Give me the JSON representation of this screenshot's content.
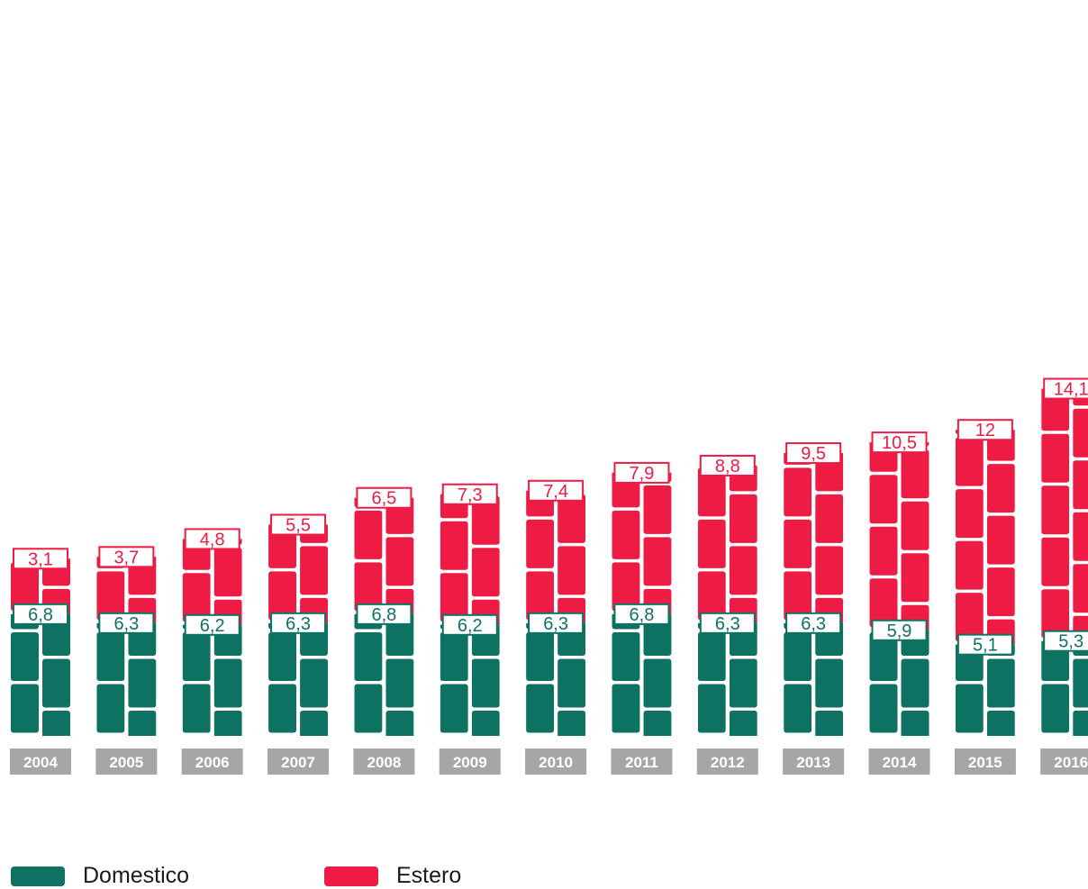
{
  "chart_data": {
    "type": "bar",
    "stacked": true,
    "categories": [
      "2004",
      "2005",
      "2006",
      "2007",
      "2008",
      "2009",
      "2010",
      "2011",
      "2012",
      "2013",
      "2014",
      "2015",
      "2016"
    ],
    "series": [
      {
        "name": "Domestico",
        "color": "#0e7263",
        "values": [
          6.8,
          6.3,
          6.2,
          6.3,
          6.8,
          6.2,
          6.3,
          6.8,
          6.3,
          6.3,
          5.9,
          5.1,
          5.3
        ]
      },
      {
        "name": "Estero",
        "color": "#ee1c45",
        "values": [
          3.1,
          3.7,
          4.8,
          5.5,
          6.5,
          7.3,
          7.4,
          7.9,
          8.8,
          9.5,
          10.5,
          12,
          14.1
        ]
      }
    ],
    "data_labels": {
      "Domestico": [
        "6,8",
        "6,3",
        "6,2",
        "6,3",
        "6,8",
        "6,2",
        "6,3",
        "6,8",
        "6,3",
        "6,3",
        "5,9",
        "5,1",
        "5,3"
      ],
      "Estero": [
        "3,1",
        "3,7",
        "4,8",
        "5,5",
        "6,5",
        "7,3",
        "7,4",
        "7,9",
        "8,8",
        "9,5",
        "10,5",
        "12",
        "14,1"
      ]
    },
    "title": "",
    "xlabel": "",
    "ylabel": "",
    "grid": false,
    "legend_position": "bottom-left",
    "tick_label_color": "#a6a6a6"
  },
  "legend": {
    "items": [
      {
        "label": "Domestico",
        "color": "#0e7263"
      },
      {
        "label": "Estero",
        "color": "#ee1c45"
      }
    ]
  }
}
